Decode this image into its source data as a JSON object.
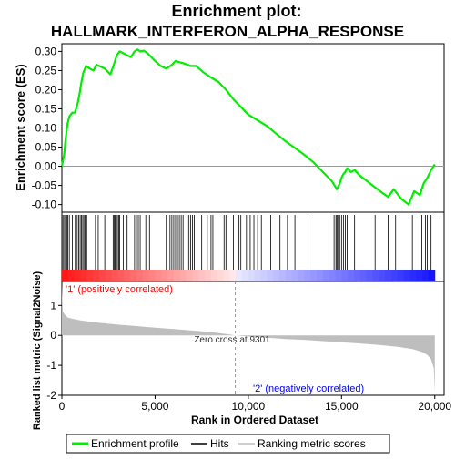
{
  "chart_data": {
    "type": "line",
    "title_line1": "Enrichment plot:",
    "title_line2": "HALLMARK_INTERFERON_ALPHA_RESPONSE",
    "xlabel": "Rank in Ordered Dataset",
    "xlim": [
      0,
      20500
    ],
    "x_ticks": [
      0,
      5000,
      10000,
      15000,
      20000
    ],
    "x_tick_labels": [
      "0",
      "5,000",
      "10,000",
      "15,000",
      "20,000"
    ],
    "top_panel": {
      "ylabel": "Enrichment score (ES)",
      "ylim": [
        -0.12,
        0.32
      ],
      "y_ticks": [
        -0.1,
        -0.05,
        0.0,
        0.05,
        0.1,
        0.15,
        0.2,
        0.25,
        0.3
      ],
      "y_tick_labels": [
        "-0.10",
        "-0.05",
        "0.00",
        "0.05",
        "0.10",
        "0.15",
        "0.20",
        "0.25",
        "0.30"
      ],
      "series_color": "#00ee00",
      "x": [
        0,
        120,
        200,
        300,
        400,
        550,
        700,
        850,
        950,
        1050,
        1150,
        1300,
        1500,
        1700,
        1850,
        2000,
        2300,
        2600,
        2750,
        2850,
        2950,
        3100,
        3300,
        3500,
        3700,
        3900,
        4050,
        4200,
        4400,
        4600,
        4800,
        5000,
        5300,
        5600,
        5900,
        6100,
        6300,
        6600,
        6900,
        7200,
        7600,
        8000,
        8400,
        8800,
        9200,
        9600,
        10000,
        10500,
        11000,
        11500,
        12000,
        12500,
        13000,
        13500,
        14000,
        14500,
        14750,
        14900,
        15000,
        15100,
        15200,
        15300,
        15500,
        15700,
        16000,
        16400,
        16800,
        17200,
        17500,
        17800,
        18200,
        18600,
        18900,
        19200,
        19400,
        19600,
        19800,
        20000
      ],
      "y": [
        0.0,
        0.03,
        0.07,
        0.11,
        0.13,
        0.14,
        0.14,
        0.165,
        0.19,
        0.22,
        0.245,
        0.262,
        0.255,
        0.25,
        0.265,
        0.262,
        0.255,
        0.24,
        0.26,
        0.275,
        0.29,
        0.3,
        0.295,
        0.29,
        0.285,
        0.3,
        0.305,
        0.3,
        0.302,
        0.295,
        0.285,
        0.275,
        0.262,
        0.255,
        0.265,
        0.275,
        0.272,
        0.268,
        0.262,
        0.262,
        0.245,
        0.232,
        0.22,
        0.2,
        0.175,
        0.155,
        0.135,
        0.12,
        0.105,
        0.085,
        0.065,
        0.048,
        0.03,
        0.01,
        -0.015,
        -0.04,
        -0.06,
        -0.045,
        -0.03,
        -0.02,
        -0.015,
        -0.005,
        -0.015,
        -0.01,
        -0.025,
        -0.04,
        -0.055,
        -0.07,
        -0.08,
        -0.06,
        -0.085,
        -0.1,
        -0.065,
        -0.075,
        -0.045,
        -0.03,
        -0.01,
        0.005
      ]
    },
    "hits": [
      60,
      140,
      200,
      260,
      320,
      400,
      560,
      720,
      820,
      900,
      980,
      1050,
      1120,
      1180,
      1250,
      1330,
      1800,
      1950,
      2300,
      2750,
      2800,
      2860,
      2920,
      2980,
      3050,
      3100,
      3300,
      3500,
      3900,
      4000,
      4100,
      4200,
      4500,
      4700,
      5600,
      5800,
      5900,
      6000,
      6100,
      6200,
      6300,
      6400,
      6500,
      6800,
      6900,
      7000,
      7100,
      7500,
      7800,
      8000,
      8100,
      8700,
      8800,
      9200,
      9500,
      9600,
      9900,
      10100,
      10300,
      10500,
      10700,
      11200,
      11700,
      12100,
      12500,
      13200,
      14600,
      14700,
      14750,
      14800,
      14900,
      15000,
      15100,
      15200,
      15300,
      15400,
      15700,
      16800,
      17500,
      17900,
      18800,
      19300,
      19500,
      19600,
      19800
    ],
    "middle_panel": {
      "label_pos": "'1' (positively correlated)",
      "label_neg": "'2' (negatively correlated)",
      "label_pos_color": "#ff0000",
      "label_neg_color": "#0000ff"
    },
    "bottom_panel": {
      "ylabel": "Ranked list metric (Signal2Noise)",
      "ylim": [
        -2.0,
        1.8
      ],
      "y_ticks": [
        -2,
        -1,
        0,
        1
      ],
      "y_tick_labels": [
        "-2",
        "-1",
        "0",
        "1"
      ],
      "zero_cross_text": "Zero cross at 9301",
      "zero_cross": 9301,
      "fill_color": "#bebebe",
      "x": [
        0,
        50,
        150,
        300,
        600,
        1000,
        2000,
        3000,
        4000,
        5000,
        6000,
        7000,
        8000,
        9000,
        9301,
        10000,
        11000,
        12000,
        13000,
        14000,
        15000,
        16000,
        17000,
        18000,
        18800,
        19300,
        19600,
        19800,
        19950,
        20000
      ],
      "y": [
        1.7,
        0.8,
        0.7,
        0.6,
        0.55,
        0.5,
        0.42,
        0.36,
        0.31,
        0.26,
        0.21,
        0.16,
        0.11,
        0.03,
        0.0,
        -0.04,
        -0.08,
        -0.12,
        -0.15,
        -0.19,
        -0.23,
        -0.27,
        -0.32,
        -0.38,
        -0.46,
        -0.55,
        -0.65,
        -0.8,
        -1.1,
        -1.9
      ]
    },
    "legend": {
      "items": [
        {
          "label": "Enrichment profile",
          "color": "#00ee00"
        },
        {
          "label": "Hits",
          "color": "#000000"
        },
        {
          "label": "Ranking metric scores",
          "color": "#bebebe"
        }
      ]
    }
  }
}
